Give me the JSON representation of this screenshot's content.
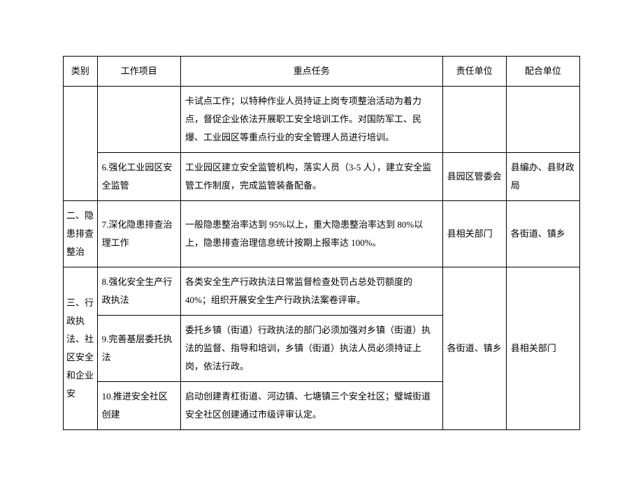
{
  "headers": {
    "category": "类别",
    "project": "工作项目",
    "task": "重点任务",
    "responsible": "责任单位",
    "cooperating": "配合单位"
  },
  "rows": {
    "r1": {
      "category": "",
      "project": "",
      "task": "卡试点工作；以特种作业人员持证上岗专项整治活动为着力点，督促企业依法开展职工安全培训工作。对国防军工、民爆、工业园区等重点行业的安全管理人员进行培训。",
      "responsible": "",
      "cooperating": ""
    },
    "r2": {
      "project": "6.强化工业园区安全监管",
      "task": "工业园区建立安全监管机构，落实人员（3-5 人），建立安全监管工作制度，完成监管装备配备。",
      "responsible": "县园区管委会",
      "cooperating": "县编办、县财政局"
    },
    "r3": {
      "category": "二、隐患排查整治",
      "project": "7.深化隐患排查治理工作",
      "task": "一般隐患整治率达到 95%以上，重大隐患整治率达到 80%以上，隐患排查治理信息统计按期上报率达 100%。",
      "responsible": "县相关部门",
      "cooperating": "各街道、镇乡"
    },
    "r4": {
      "category": "三、行政执法、社区安全和企业安",
      "project": "8.强化安全生产行政执法",
      "task": "各类安全生产行政执法日常监督检查处罚占总处罚额度的 40%；组织开展安全生产行政执法案卷评审。",
      "responsible": "",
      "cooperating": ""
    },
    "r5": {
      "project": "9.完善基层委托执法",
      "task": "委托乡镇（街道）行政执法的部门必须加强对乡镇（街道）执法的监督、指导和培训，乡镇（街道）执法人员必须持证上岗，依法行政。",
      "responsible": "各街道、镇乡",
      "cooperating": "县相关部门"
    },
    "r6": {
      "project": "10.推进安全社区创建",
      "task": "启动创建青杠街道、河边镇、七塘镇三个安全社区；璧城街道安全社区创建通过市级评审认定。",
      "responsible": "",
      "cooperating": ""
    }
  }
}
